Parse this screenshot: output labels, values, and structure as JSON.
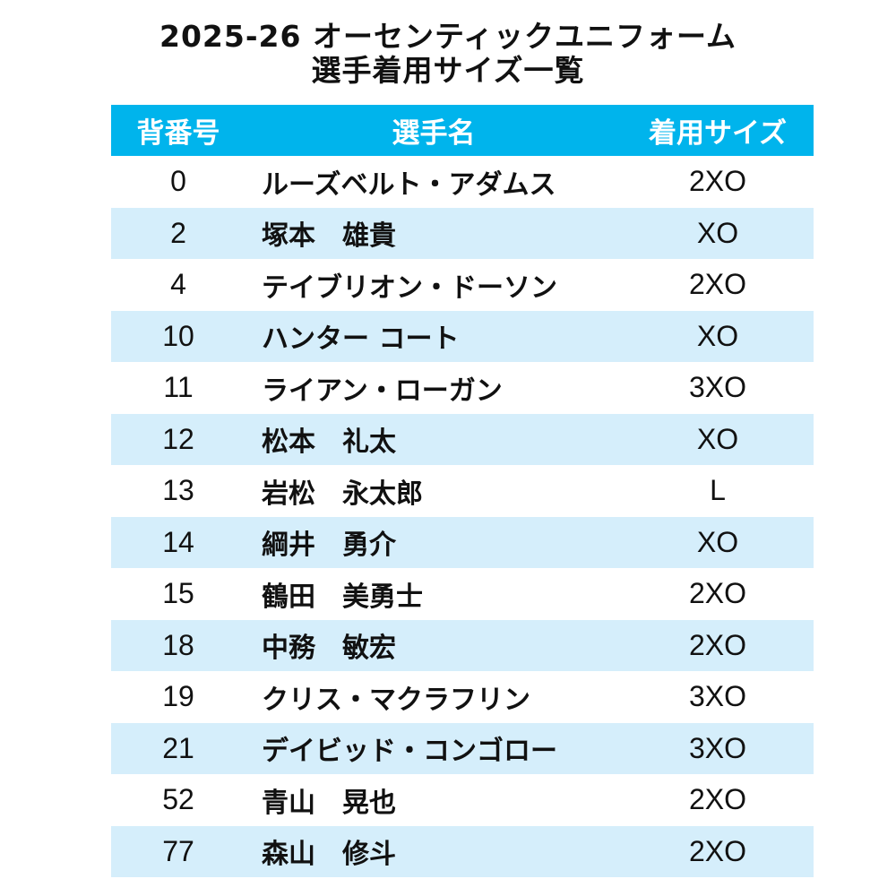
{
  "title": {
    "line1": "2025-26 オーセンティックユニフォーム",
    "line2": "選手着用サイズ一覧"
  },
  "table": {
    "headers": {
      "number": "背番号",
      "name": "選手名",
      "size": "着用サイズ"
    },
    "rows": [
      {
        "number": "0",
        "name": "ルーズベルト・アダムス",
        "size": "2XO"
      },
      {
        "number": "2",
        "name": "塚本　雄貴",
        "size": "XO"
      },
      {
        "number": "4",
        "name": "テイブリオン・ドーソン",
        "size": "2XO"
      },
      {
        "number": "10",
        "name": "ハンター コート",
        "size": "XO"
      },
      {
        "number": "11",
        "name": "ライアン・ローガン",
        "size": "3XO"
      },
      {
        "number": "12",
        "name": "松本　礼太",
        "size": "XO"
      },
      {
        "number": "13",
        "name": "岩松　永太郎",
        "size": "L"
      },
      {
        "number": "14",
        "name": "綱井　勇介",
        "size": "XO"
      },
      {
        "number": "15",
        "name": "鶴田　美勇士",
        "size": "2XO"
      },
      {
        "number": "18",
        "name": "中務　敏宏",
        "size": "2XO"
      },
      {
        "number": "19",
        "name": "クリス・マクラフリン",
        "size": "3XO"
      },
      {
        "number": "21",
        "name": "デイビッド・コンゴロー",
        "size": "3XO"
      },
      {
        "number": "52",
        "name": "青山　晃也",
        "size": "2XO"
      },
      {
        "number": "77",
        "name": "森山　修斗",
        "size": "2XO"
      }
    ]
  },
  "colors": {
    "header_bg": "#00b4ec",
    "alt_row_bg": "#d5eefb"
  }
}
